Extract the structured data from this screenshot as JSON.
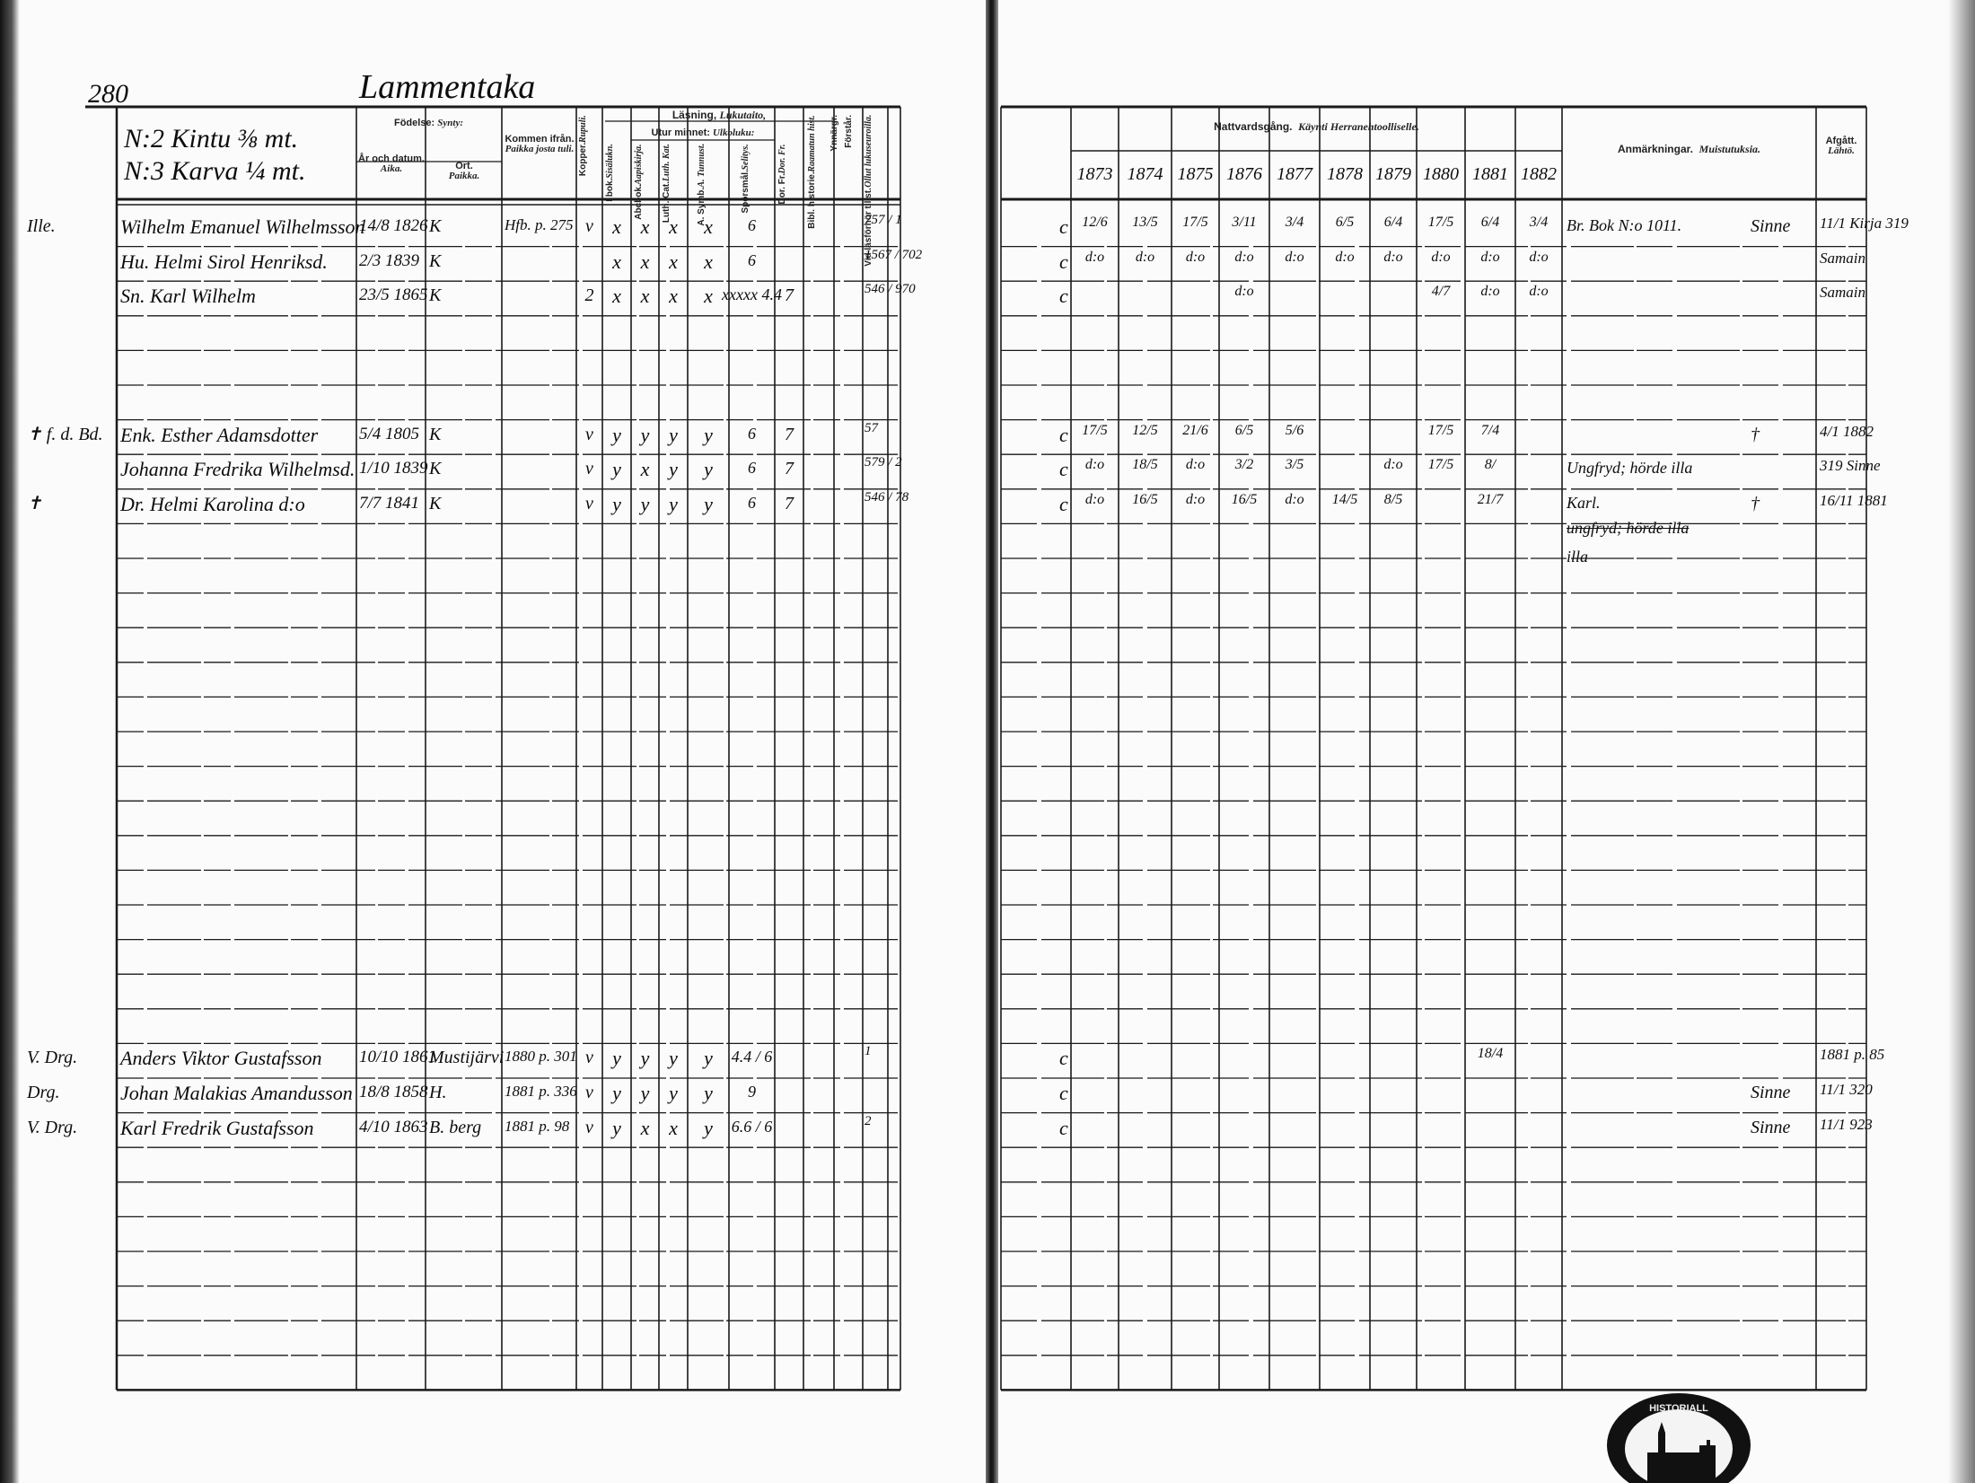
{
  "page_number": "280",
  "village": "Lammentaka",
  "farm": [
    "N:2 Kintu ⅜ mt.",
    "N:3 Karva ¼ mt."
  ],
  "left_headers": {
    "birth": "Födelse:",
    "birth_fi": "Synty:",
    "year_date": "År och datum.",
    "year_date_fi": "Aika.",
    "place": "Ort.",
    "place_fi": "Paikka.",
    "came_from": "Kommen ifrån.",
    "came_from_fi": "Paikka josta tuli.",
    "pox": "Kopper.",
    "pox_fi": "Rupuli.",
    "reading": "Läsning,",
    "reading_fi": "Lukutaito,",
    "by_heart": "Utur minnet:",
    "by_heart_fi": "Ulkoluku:",
    "in_book": "I bok.",
    "in_book_fi": "Sisälukn.",
    "abc": "Abcbok.",
    "abc_fi": "Aapiskirja.",
    "luther": "Luth. Cat.",
    "luther_fi": "Luth. Kat.",
    "symb": "A. Symb.",
    "symb_fi": "A. Tunnust.",
    "questions": "Spörsmål.",
    "questions_fi": "Selitys.",
    "dorfr": "Dor. Fr.",
    "dorfr_fi": "Dor. Fr.",
    "bible": "Bibl. historie.",
    "bible_fi": "Raamatun hist.",
    "understanding": "Ynnärgr.",
    "understands": "Förstår.",
    "exam": "Vid läsförhör tillst.",
    "exam_fi": "Ollut lukuseuroilla."
  },
  "right_headers": {
    "communion": "Nattvardsgång.",
    "communion_fi": "Käynti Herranehtoolliselle.",
    "years": [
      "1873",
      "1874",
      "1875",
      "1876",
      "1877",
      "1878",
      "1879",
      "1880",
      "1881",
      "1882"
    ],
    "remarks": "Anmärkningar.",
    "remarks_fi": "Muistutuksia.",
    "departed": "Afgått.",
    "departed_fi": "Lähtö."
  },
  "entries": [
    {
      "mark": "Ille.",
      "name": "Wilhelm Emanuel Wilhelmsson",
      "date": "14/8 1826",
      "place": "K",
      "from": "Hfb. p. 275",
      "pox": "v",
      "in_book": "x",
      "abc": "x",
      "luther": "x",
      "symb": "x",
      "questions": "6",
      "dorfr": "",
      "exam": "757 / 1",
      "communion": [
        "12/6",
        "13/5",
        "17/5",
        "3/11",
        "3/4",
        "6/5",
        "6/4",
        "17/5",
        "6/4",
        "3/4"
      ],
      "c": "c",
      "remark": "Br. Bok N:o 1011.",
      "depart": "11/1 Kirja 319",
      "depart_note": "Sinne"
    },
    {
      "mark": "",
      "name": "Hu. Helmi Sirol Henriksd.",
      "date": "2/3 1839",
      "place": "K",
      "from": "",
      "pox": "",
      "in_book": "x",
      "abc": "x",
      "luther": "x",
      "symb": "x",
      "questions": "6",
      "dorfr": "",
      "exam": "1567 / 702",
      "communion": [
        "d:o",
        "d:o",
        "d:o",
        "d:o",
        "d:o",
        "d:o",
        "d:o",
        "d:o",
        "d:o",
        "d:o"
      ],
      "c": "c",
      "remark": "",
      "depart": "Samain",
      "depart_note": ""
    },
    {
      "mark": "",
      "name": "Sn. Karl Wilhelm",
      "date": "23/5 1865",
      "place": "K",
      "from": "",
      "pox": "2",
      "in_book": "x",
      "abc": "x",
      "luther": "x",
      "symb": "x",
      "questions": "xxxxx 4.4",
      "dorfr": "7",
      "exam": "546 / 970",
      "communion": [
        "",
        "",
        "",
        "d:o",
        "",
        "",
        "",
        "4/7",
        "d:o",
        "d:o"
      ],
      "c": "c",
      "remark": "",
      "depart": "Samain",
      "depart_note": ""
    },
    {
      "mark": "✝ f. d. Bd.",
      "name": "Enk. Esther Adamsdotter",
      "date": "5/4 1805",
      "place": "K",
      "from": "",
      "pox": "v",
      "in_book": "y",
      "abc": "y",
      "luther": "y",
      "symb": "y",
      "questions": "6",
      "dorfr": "7",
      "exam": "57",
      "communion": [
        "17/5",
        "12/5",
        "21/6",
        "6/5",
        "5/6",
        "",
        "",
        "17/5",
        "7/4",
        ""
      ],
      "c": "c",
      "remark": "",
      "depart": "4/1 1882",
      "depart_note": "†"
    },
    {
      "mark": "",
      "name": "Johanna Fredrika Wilhelmsd.",
      "date": "1/10 1839",
      "place": "K",
      "from": "",
      "pox": "v",
      "in_book": "y",
      "abc": "x",
      "luther": "y",
      "symb": "y",
      "questions": "6",
      "dorfr": "7",
      "exam": "579 / 2",
      "communion": [
        "d:o",
        "18/5",
        "d:o",
        "3/2",
        "3/5",
        "",
        "d:o",
        "17/5",
        "8/",
        ""
      ],
      "c": "c",
      "remark": "Ungfryd; hörde illa",
      "depart": "319 Sinne",
      "depart_note": ""
    },
    {
      "mark": "✝",
      "name": "Dr. Helmi Karolina d:o",
      "date": "7/7 1841",
      "place": "K",
      "from": "",
      "pox": "v",
      "in_book": "y",
      "abc": "y",
      "luther": "y",
      "symb": "y",
      "questions": "6",
      "dorfr": "7",
      "exam": "546 / 78",
      "communion": [
        "d:o",
        "16/5",
        "d:o",
        "16/5",
        "d:o",
        "14/5",
        "8/5",
        "",
        "21/7",
        ""
      ],
      "c": "c",
      "remark": "Karl.",
      "remark2": "ungfryd; hörde illa",
      "remark3": "illa",
      "depart": "16/11 1881",
      "depart_note": "†"
    },
    {
      "mark": "V. Drg.",
      "name": "Anders Viktor Gustafsson",
      "date": "10/10 1861",
      "place": "Mustijärvi",
      "from": "1880 p. 301",
      "pox": "v",
      "in_book": "y",
      "abc": "y",
      "luther": "y",
      "symb": "y",
      "questions": "4.4 / 6",
      "dorfr": "",
      "exam": "1",
      "communion": [
        "",
        "",
        "",
        "",
        "",
        "",
        "",
        "",
        "18/4",
        ""
      ],
      "c": "c",
      "remark": "",
      "depart": "1881 p. 85",
      "depart_note": ""
    },
    {
      "mark": "Drg.",
      "name": "Johan Malakias Amandusson",
      "date": "18/8 1858",
      "place": "H.",
      "from": "1881 p. 336",
      "pox": "v",
      "in_book": "y",
      "abc": "y",
      "luther": "y",
      "symb": "y",
      "questions": "9",
      "dorfr": "",
      "exam": "",
      "communion": [
        "",
        "",
        "",
        "",
        "",
        "",
        "",
        "",
        "",
        ""
      ],
      "c": "c",
      "remark": "",
      "depart": "11/1 320",
      "depart_note": "Sinne"
    },
    {
      "mark": "V. Drg.",
      "name": "Karl Fredrik Gustafsson",
      "date": "4/10 1863",
      "place": "B. berg",
      "from": "1881 p. 98",
      "pox": "v",
      "in_book": "y",
      "abc": "x",
      "luther": "x",
      "symb": "y",
      "questions": "6.6 / 6",
      "dorfr": "",
      "exam": "2",
      "communion": [
        "",
        "",
        "",
        "",
        "",
        "",
        "",
        "",
        "",
        ""
      ],
      "c": "c",
      "remark": "",
      "depart": "11/1 923",
      "depart_note": "Sinne"
    }
  ],
  "stamp_text": "HISTORIALLINEN ARKISTO",
  "colors": {
    "ink": "#0d0d0d",
    "paper": "#fbfbfb",
    "rule": "#222222"
  }
}
